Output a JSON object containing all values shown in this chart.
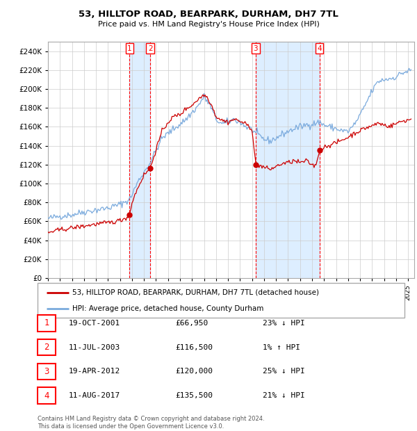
{
  "title": "53, HILLTOP ROAD, BEARPARK, DURHAM, DH7 7TL",
  "subtitle": "Price paid vs. HM Land Registry's House Price Index (HPI)",
  "legend_line1": "53, HILLTOP ROAD, BEARPARK, DURHAM, DH7 7TL (detached house)",
  "legend_line2": "HPI: Average price, detached house, County Durham",
  "footer_line1": "Contains HM Land Registry data © Crown copyright and database right 2024.",
  "footer_line2": "This data is licensed under the Open Government Licence v3.0.",
  "hpi_color": "#7aaadd",
  "price_color": "#cc0000",
  "background_color": "#ffffff",
  "shade_color": "#ddeeff",
  "grid_color": "#cccccc",
  "sale_points": [
    {
      "label": "1",
      "date_x": 2001.8,
      "price": 66950
    },
    {
      "label": "2",
      "date_x": 2003.53,
      "price": 116500
    },
    {
      "label": "3",
      "date_x": 2012.3,
      "price": 120000
    },
    {
      "label": "4",
      "date_x": 2017.61,
      "price": 135500
    }
  ],
  "sale_details": [
    {
      "num": "1",
      "date": "19-OCT-2001",
      "price": "£66,950",
      "pct": "23% ↓ HPI"
    },
    {
      "num": "2",
      "date": "11-JUL-2003",
      "price": "£116,500",
      "pct": "1% ↑ HPI"
    },
    {
      "num": "3",
      "date": "19-APR-2012",
      "price": "£120,000",
      "pct": "25% ↓ HPI"
    },
    {
      "num": "4",
      "date": "11-AUG-2017",
      "price": "£135,500",
      "pct": "21% ↓ HPI"
    }
  ],
  "ylim": [
    0,
    250000
  ],
  "yticks": [
    0,
    20000,
    40000,
    60000,
    80000,
    100000,
    120000,
    140000,
    160000,
    180000,
    200000,
    220000,
    240000
  ],
  "xlim_start": 1995.0,
  "xlim_end": 2025.5,
  "hpi_anchors": [
    [
      1995.0,
      63000
    ],
    [
      1996.0,
      65500
    ],
    [
      1997.0,
      67000
    ],
    [
      1998.0,
      70000
    ],
    [
      1999.0,
      72000
    ],
    [
      2000.0,
      74000
    ],
    [
      2001.0,
      78000
    ],
    [
      2001.8,
      83000
    ],
    [
      2002.5,
      102000
    ],
    [
      2003.5,
      122000
    ],
    [
      2004.5,
      148000
    ],
    [
      2005.5,
      158000
    ],
    [
      2006.5,
      168000
    ],
    [
      2007.0,
      175000
    ],
    [
      2007.5,
      182000
    ],
    [
      2008.0,
      192000
    ],
    [
      2008.5,
      183000
    ],
    [
      2009.0,
      168000
    ],
    [
      2009.5,
      163000
    ],
    [
      2010.0,
      165000
    ],
    [
      2010.5,
      168000
    ],
    [
      2011.0,
      165000
    ],
    [
      2011.5,
      160000
    ],
    [
      2012.0,
      157000
    ],
    [
      2012.3,
      153000
    ],
    [
      2013.0,
      147000
    ],
    [
      2013.5,
      145000
    ],
    [
      2014.0,
      148000
    ],
    [
      2014.5,
      152000
    ],
    [
      2015.0,
      155000
    ],
    [
      2015.5,
      158000
    ],
    [
      2016.0,
      160000
    ],
    [
      2016.5,
      162000
    ],
    [
      2017.0,
      163000
    ],
    [
      2017.6,
      165000
    ],
    [
      2018.0,
      162000
    ],
    [
      2018.5,
      160000
    ],
    [
      2019.0,
      158000
    ],
    [
      2019.5,
      156000
    ],
    [
      2020.0,
      155000
    ],
    [
      2020.5,
      162000
    ],
    [
      2021.0,
      172000
    ],
    [
      2021.5,
      185000
    ],
    [
      2022.0,
      198000
    ],
    [
      2022.5,
      208000
    ],
    [
      2023.0,
      210000
    ],
    [
      2023.5,
      211000
    ],
    [
      2024.0,
      213000
    ],
    [
      2024.5,
      217000
    ],
    [
      2025.3,
      220000
    ]
  ],
  "price_anchors": [
    [
      1995.0,
      48000
    ],
    [
      1996.0,
      51000
    ],
    [
      1997.0,
      53000
    ],
    [
      1998.0,
      55000
    ],
    [
      1999.0,
      57000
    ],
    [
      2000.0,
      58500
    ],
    [
      2000.5,
      59500
    ],
    [
      2001.0,
      61000
    ],
    [
      2001.5,
      63500
    ],
    [
      2001.8,
      66950
    ],
    [
      2002.0,
      80000
    ],
    [
      2002.5,
      96000
    ],
    [
      2003.0,
      109000
    ],
    [
      2003.53,
      116500
    ],
    [
      2004.0,
      136000
    ],
    [
      2004.5,
      155000
    ],
    [
      2005.0,
      165000
    ],
    [
      2005.5,
      171000
    ],
    [
      2006.0,
      173000
    ],
    [
      2006.5,
      179000
    ],
    [
      2007.0,
      183000
    ],
    [
      2007.5,
      189000
    ],
    [
      2008.0,
      194000
    ],
    [
      2008.3,
      191000
    ],
    [
      2008.7,
      181000
    ],
    [
      2009.0,
      171000
    ],
    [
      2009.5,
      167000
    ],
    [
      2010.0,
      165000
    ],
    [
      2010.5,
      168000
    ],
    [
      2011.0,
      166000
    ],
    [
      2011.3,
      164000
    ],
    [
      2011.7,
      161000
    ],
    [
      2012.0,
      158000
    ],
    [
      2012.3,
      120000
    ],
    [
      2012.5,
      120000
    ],
    [
      2013.0,
      117000
    ],
    [
      2013.5,
      115000
    ],
    [
      2014.0,
      118000
    ],
    [
      2014.5,
      121000
    ],
    [
      2015.0,
      122000
    ],
    [
      2015.5,
      124000
    ],
    [
      2016.0,
      122000
    ],
    [
      2016.5,
      124000
    ],
    [
      2017.0,
      120000
    ],
    [
      2017.3,
      118000
    ],
    [
      2017.61,
      135500
    ],
    [
      2017.8,
      137000
    ],
    [
      2018.0,
      138500
    ],
    [
      2018.5,
      141000
    ],
    [
      2019.0,
      143000
    ],
    [
      2019.5,
      146000
    ],
    [
      2020.0,
      149000
    ],
    [
      2020.5,
      153000
    ],
    [
      2021.0,
      156000
    ],
    [
      2021.5,
      159000
    ],
    [
      2022.0,
      161000
    ],
    [
      2022.5,
      164000
    ],
    [
      2023.0,
      162000
    ],
    [
      2023.5,
      160500
    ],
    [
      2024.0,
      163500
    ],
    [
      2024.5,
      166000
    ],
    [
      2025.3,
      168000
    ]
  ]
}
